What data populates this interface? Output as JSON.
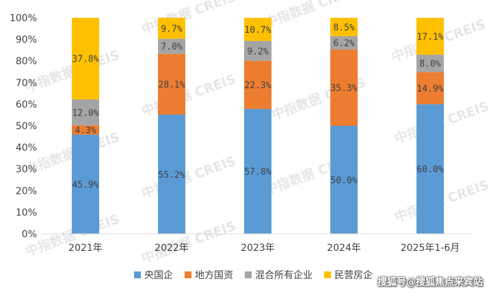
{
  "chart_data": {
    "type": "bar",
    "stacked": true,
    "normalized": true,
    "categories": [
      "2021年",
      "2022年",
      "2023年",
      "2024年",
      "2025年1-6月"
    ],
    "series": [
      {
        "name": "央国企",
        "color": "#5b9bd5",
        "values": [
          45.9,
          55.2,
          57.8,
          50.0,
          60.0
        ],
        "labels": [
          "45.9%",
          "55.2%",
          "57.8%",
          "50.0%",
          "60.0%"
        ]
      },
      {
        "name": "地方国资",
        "color": "#ed7d31",
        "values": [
          4.3,
          28.1,
          22.3,
          35.3,
          14.9
        ],
        "labels": [
          "4.3%",
          "28.1%",
          "22.3%",
          "35.3%",
          "14.9%"
        ]
      },
      {
        "name": "混合所有企业",
        "color": "#a5a5a5",
        "values": [
          12.0,
          7.0,
          9.2,
          6.2,
          8.0
        ],
        "labels": [
          "12.0%",
          "7.0%",
          "9.2%",
          "6.2%",
          "8.0%"
        ]
      },
      {
        "name": "民营房企",
        "color": "#ffc000",
        "values": [
          37.8,
          9.7,
          10.7,
          8.5,
          17.1
        ],
        "labels": [
          "37.8%",
          "9.7%",
          "10.7%",
          "8.5%",
          "17.1%"
        ]
      }
    ],
    "y_ticks": [
      "0%",
      "10%",
      "20%",
      "30%",
      "40%",
      "50%",
      "60%",
      "70%",
      "80%",
      "90%",
      "100%"
    ],
    "ylim": [
      0,
      100
    ],
    "grid": false,
    "legend_position": "bottom"
  },
  "watermark": "中指数据 CREIS",
  "credit": "搜狐号@搜狐焦点来宾站"
}
